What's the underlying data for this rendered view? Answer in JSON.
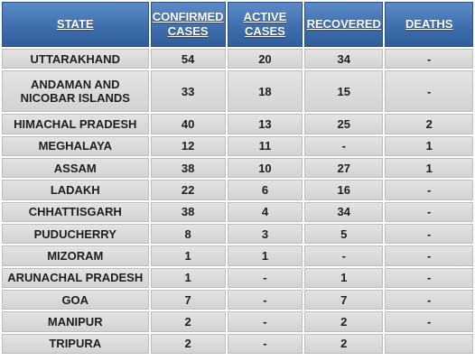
{
  "chart_data": {
    "type": "table",
    "columns": [
      "STATE",
      "CONFIRMED CASES",
      "ACTIVE CASES",
      "RECOVERED",
      "DEATHS"
    ],
    "rows": [
      {
        "state": "UTTARAKHAND",
        "confirmed": "54",
        "active": "20",
        "recovered": "34",
        "deaths": "-"
      },
      {
        "state": "ANDAMAN AND NICOBAR ISLANDS",
        "confirmed": "33",
        "active": "18",
        "recovered": "15",
        "deaths": "-"
      },
      {
        "state": "HIMACHAL PRADESH",
        "confirmed": "40",
        "active": "13",
        "recovered": "25",
        "deaths": "2"
      },
      {
        "state": "MEGHALAYA",
        "confirmed": "12",
        "active": "11",
        "recovered": "-",
        "deaths": "1"
      },
      {
        "state": "ASSAM",
        "confirmed": "38",
        "active": "10",
        "recovered": "27",
        "deaths": "1"
      },
      {
        "state": "LADAKH",
        "confirmed": "22",
        "active": "6",
        "recovered": "16",
        "deaths": "-"
      },
      {
        "state": "CHHATTISGARH",
        "confirmed": "38",
        "active": "4",
        "recovered": "34",
        "deaths": "-"
      },
      {
        "state": "PUDUCHERRY",
        "confirmed": "8",
        "active": "3",
        "recovered": "5",
        "deaths": "-"
      },
      {
        "state": "MIZORAM",
        "confirmed": "1",
        "active": "1",
        "recovered": "-",
        "deaths": "-"
      },
      {
        "state": "ARUNACHAL PRADESH",
        "confirmed": "1",
        "active": "-",
        "recovered": "1",
        "deaths": "-"
      },
      {
        "state": "GOA",
        "confirmed": "7",
        "active": "-",
        "recovered": "7",
        "deaths": "-"
      },
      {
        "state": "MANIPUR",
        "confirmed": "2",
        "active": "-",
        "recovered": "2",
        "deaths": "-"
      },
      {
        "state": "TRIPURA",
        "confirmed": "2",
        "active": "-",
        "recovered": "2",
        "deaths": ""
      }
    ]
  },
  "colors": {
    "header_bg": "#3f6fae",
    "header_text": "#ffffff",
    "cell_bg": "#d9d9d9",
    "cell_text": "#1e1e1e"
  }
}
